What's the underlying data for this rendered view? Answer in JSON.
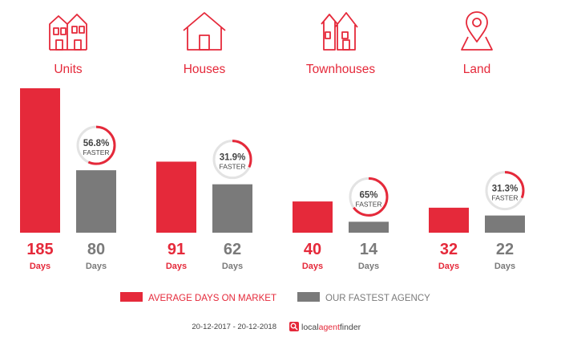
{
  "colors": {
    "accent": "#e5293a",
    "agency": "#7a7a7a",
    "ring_track": "#e3e3e3",
    "text_dark": "#444444"
  },
  "chart_data": {
    "type": "bar",
    "categories": [
      "Units",
      "Houses",
      "Townhouses",
      "Land"
    ],
    "category_icons": [
      "units-icon",
      "house-icon",
      "townhouse-icon",
      "map-pin-icon"
    ],
    "unit_label": "Days",
    "faster_label": "FASTER",
    "series": [
      {
        "name": "AVERAGE DAYS ON MARKET",
        "values": [
          185,
          91,
          40,
          32
        ]
      },
      {
        "name": "OUR FASTEST AGENCY",
        "values": [
          80,
          62,
          14,
          22
        ]
      }
    ],
    "faster_percent": [
      "56.8%",
      "31.9%",
      "65%",
      "31.3%"
    ],
    "faster_fraction": [
      0.568,
      0.319,
      0.65,
      0.313
    ],
    "ylim": [
      0,
      185
    ]
  },
  "footer": {
    "date_range": "20-12-2017 - 20-12-2018",
    "brand_local": "local",
    "brand_agent": "agent",
    "brand_finder": "finder"
  }
}
